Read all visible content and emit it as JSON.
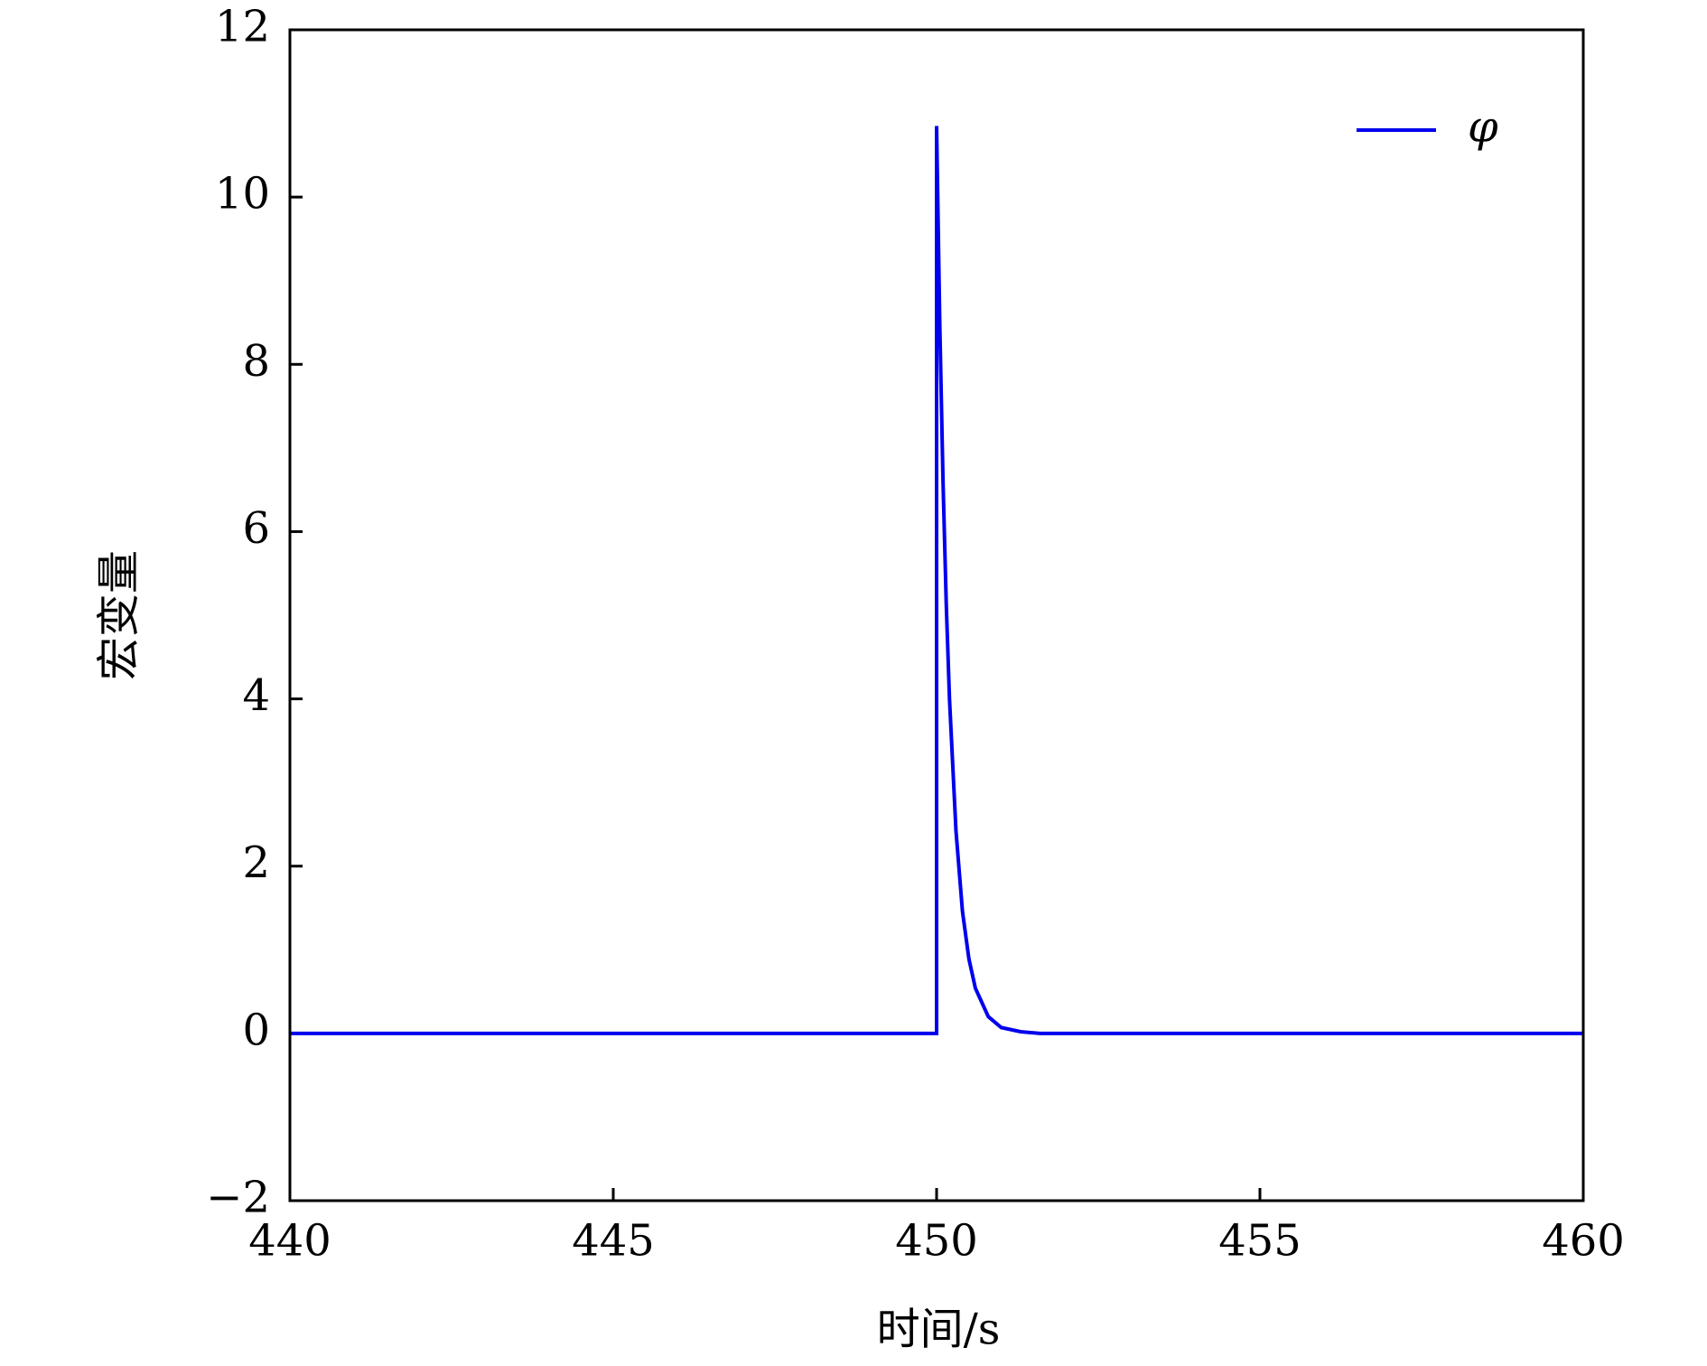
{
  "chart_data": {
    "type": "line",
    "xlabel": "时间/s",
    "ylabel": "宏变量",
    "x": [
      440,
      450,
      450,
      450.05,
      450.1,
      450.15,
      450.2,
      450.3,
      450.4,
      450.5,
      450.6,
      450.8,
      451.0,
      451.3,
      451.6,
      452,
      460
    ],
    "series": [
      {
        "name": "φ",
        "color": "#0000ee",
        "values": [
          0,
          0,
          10.85,
          8.45,
          6.58,
          5.12,
          3.99,
          2.42,
          1.46,
          0.89,
          0.54,
          0.2,
          0.07,
          0.02,
          0,
          0,
          0
        ]
      }
    ],
    "xlim": [
      440,
      460
    ],
    "xticks": [
      440,
      445,
      450,
      455,
      460
    ],
    "ylim": [
      -2,
      12
    ],
    "yticks": [
      {
        "value": -2,
        "label": "−2"
      },
      0,
      2,
      4,
      6,
      8,
      10,
      12
    ],
    "grid": false,
    "legend": "upper right"
  }
}
